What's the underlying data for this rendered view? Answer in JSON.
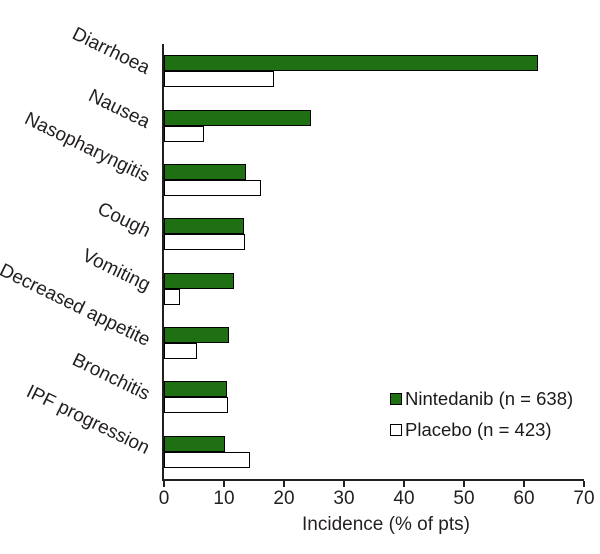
{
  "chart_data": {
    "type": "bar",
    "orientation": "horizontal",
    "title": "",
    "categories": [
      "Diarrhoea",
      "Nausea",
      "Nasopharyngitis",
      "Cough",
      "Vomiting",
      "Decreased appetite",
      "Bronchitis",
      "IPF progression"
    ],
    "series": [
      {
        "name": "Nintedanib (n = 638)",
        "color": "#1e7012",
        "values": [
          62.4,
          24.5,
          13.6,
          13.4,
          11.6,
          10.9,
          10.5,
          10.2
        ]
      },
      {
        "name": "Placebo (n = 423)",
        "color": "#ffffff",
        "values": [
          18.4,
          6.6,
          16.1,
          13.5,
          2.6,
          5.5,
          10.6,
          14.4
        ]
      }
    ],
    "xlabel": "Incidence (% of pts)",
    "xlim": [
      0,
      70
    ],
    "xticks": [
      "0",
      "10",
      "20",
      "30",
      "40",
      "50",
      "60",
      "70"
    ],
    "grid": false,
    "legend_position": "lower right",
    "bar_border_color": "#000000",
    "axis_color": "#231f20",
    "label_rotation_deg": 26
  }
}
